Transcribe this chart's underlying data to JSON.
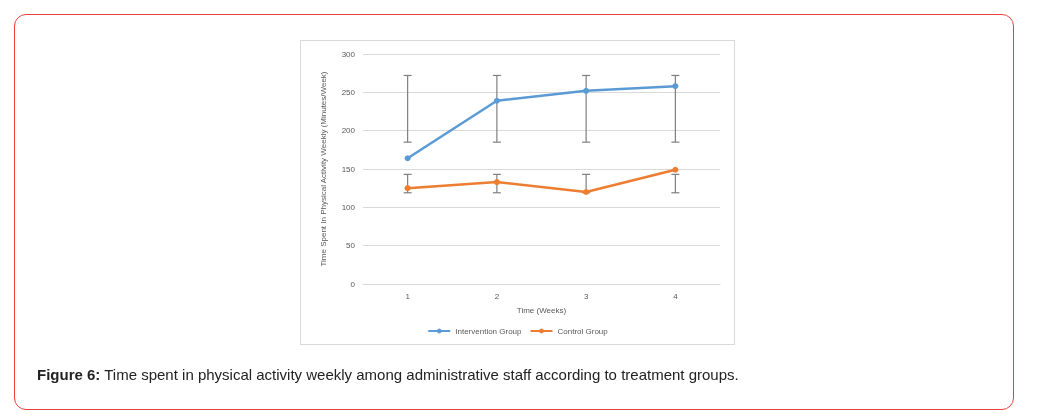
{
  "chart_data": {
    "type": "line",
    "xlabel": "Time (Weeks)",
    "ylabel": "Time Spent In Physical Activity Weekly (Minutes/Week)",
    "categories": [
      "1",
      "2",
      "3",
      "4"
    ],
    "series": [
      {
        "name": "Intervention Group",
        "color": "#5b9bd5",
        "values": [
          164,
          239,
          252,
          258
        ],
        "errors": [
          [
            185,
            272
          ],
          [
            185,
            272
          ],
          [
            185,
            272
          ],
          [
            185,
            272
          ]
        ]
      },
      {
        "name": "Control Group",
        "color": "#ed7d31",
        "values": [
          125,
          133,
          120,
          149
        ],
        "errors": [
          [
            119,
            143
          ],
          [
            119,
            143
          ],
          [
            119,
            143
          ],
          [
            119,
            143
          ]
        ]
      }
    ],
    "ylim": [
      0,
      300
    ],
    "yticks": [
      0,
      50,
      100,
      150,
      200,
      250,
      300
    ],
    "grid": "y",
    "legend": "bottom",
    "marker": "circle",
    "line_style": "solid",
    "annotations": [
      "Figure 6: Time spent in physical activity weekly among administrative staff according to treatment groups."
    ]
  }
}
